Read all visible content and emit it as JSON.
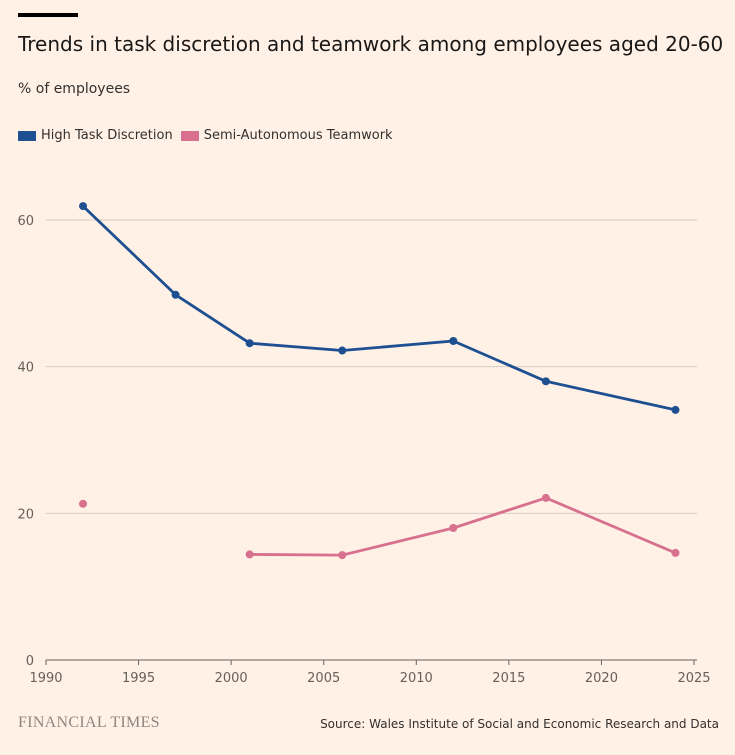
{
  "title": "Trends in task discretion and teamwork among employees aged 20-60",
  "subtitle": "% of employees",
  "legend": {
    "series_0": "High Task Discretion",
    "series_1": "Semi-Autonomous Teamwork"
  },
  "footer": {
    "logo": "FINANCIAL TIMES",
    "source": "Source: Wales Institute of Social and Economic Research and Data"
  },
  "colors": {
    "background": "#FFF1E5",
    "series_0": "#1D4F91",
    "series_1": "#D8708F",
    "grid": "#D7CCC3",
    "axis": "#66605C"
  },
  "chart_data": {
    "type": "line",
    "title": "Trends in task discretion and teamwork among employees aged 20-60",
    "ylabel": "% of employees",
    "xlim": [
      1990,
      2025
    ],
    "ylim": [
      0,
      62
    ],
    "x_ticks": [
      1990,
      1995,
      2000,
      2005,
      2010,
      2015,
      2020,
      2025
    ],
    "y_ticks": [
      0,
      20,
      40,
      60
    ],
    "grid": true,
    "legend_position": "top-left",
    "series": [
      {
        "name": "High Task Discretion",
        "x": [
          1992,
          1997,
          2001,
          2006,
          2012,
          2017,
          2024
        ],
        "values": [
          61.9,
          49.8,
          43.2,
          42.2,
          43.5,
          38.0,
          34.1
        ]
      },
      {
        "name": "Semi-Autonomous Teamwork",
        "x": [
          1992,
          2001,
          2006,
          2012,
          2017,
          2024
        ],
        "values": [
          21.3,
          14.4,
          14.3,
          18.0,
          22.1,
          14.6
        ],
        "segments": [
          [
            1992
          ],
          [
            2001,
            2006,
            2012,
            2017,
            2024
          ]
        ]
      }
    ]
  }
}
